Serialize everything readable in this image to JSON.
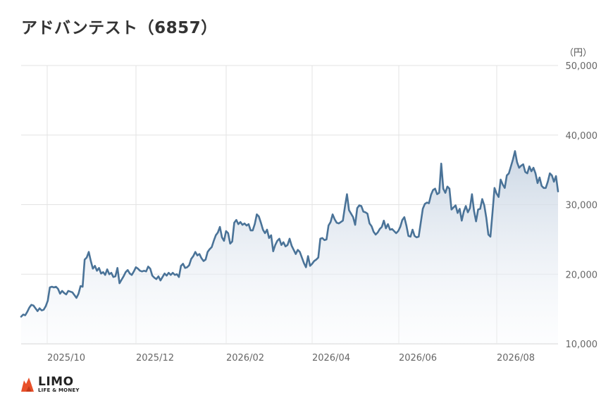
{
  "header": {
    "title": "アドバンテスト（6857）",
    "unit": "（円）"
  },
  "logo": {
    "name": "LIMO",
    "tagline": "LIFE & MONEY"
  },
  "colors": {
    "line": "#4a7398",
    "area_top": "#c9d5e3",
    "grid": "#e3e3e3",
    "logo_accent": "#e8502a"
  },
  "chart_data": {
    "type": "area",
    "title": "アドバンテスト（6857）",
    "ylabel": "（円）",
    "xlabel": "",
    "ylim": [
      10000,
      50000
    ],
    "y_ticks": [
      10000,
      20000,
      30000,
      40000,
      50000
    ],
    "y_tick_labels": [
      "10,000",
      "20,000",
      "30,000",
      "40,000",
      "50,000"
    ],
    "x_tick_labels": [
      "2025/10",
      "2025/12",
      "2026/02",
      "2026/04",
      "2026/06",
      "2026/08"
    ],
    "grid": true,
    "series": [
      {
        "values": [
          13900,
          14200,
          14100,
          14600,
          15200,
          15600,
          15500,
          15100,
          14700,
          15100,
          14800,
          14900,
          15400,
          16200,
          18100,
          18200,
          18100,
          18200,
          17900,
          17200,
          17600,
          17300,
          17100,
          17600,
          17500,
          17400,
          17000,
          16600,
          17200,
          18300,
          18200,
          22100,
          22400,
          23200,
          21900,
          20800,
          21200,
          20500,
          20900,
          20100,
          20300,
          19900,
          20700,
          20000,
          20200,
          19600,
          19700,
          20900,
          18700,
          19200,
          19700,
          20300,
          20600,
          20100,
          19900,
          20400,
          21000,
          20800,
          20500,
          20400,
          20500,
          20400,
          21100,
          20800,
          19800,
          19500,
          19300,
          19700,
          19100,
          19600,
          20100,
          19800,
          20200,
          19900,
          20200,
          19900,
          20000,
          19600,
          21200,
          21500,
          20900,
          21000,
          21300,
          22200,
          22600,
          23200,
          22700,
          22900,
          22300,
          21900,
          22100,
          23200,
          23600,
          23900,
          24800,
          25600,
          26000,
          26800,
          25300,
          24800,
          26200,
          25900,
          24400,
          24700,
          27400,
          27800,
          27200,
          27500,
          27100,
          27300,
          27000,
          27200,
          26300,
          26300,
          27200,
          28600,
          28300,
          27400,
          26400,
          25900,
          26400,
          25200,
          25600,
          23300,
          24200,
          24800,
          25100,
          24200,
          24600,
          24000,
          24200,
          25100,
          24100,
          23500,
          22900,
          23500,
          23200,
          22400,
          21600,
          21000,
          22600,
          21200,
          21500,
          21900,
          22100,
          22400,
          25100,
          25200,
          24900,
          25000,
          27000,
          27500,
          28600,
          27900,
          27400,
          27300,
          27500,
          27700,
          29700,
          31500,
          29200,
          28700,
          28200,
          27100,
          29500,
          29900,
          29800,
          29000,
          28900,
          28700,
          27300,
          26900,
          26100,
          25700,
          26000,
          26500,
          26800,
          27700,
          26600,
          27200,
          26400,
          26500,
          26200,
          25900,
          26200,
          26800,
          27800,
          28200,
          27000,
          25500,
          25400,
          26400,
          25500,
          25300,
          25400,
          27400,
          29400,
          30100,
          30300,
          30200,
          31400,
          32100,
          32300,
          31500,
          31700,
          35900,
          32300,
          31700,
          32600,
          32300,
          29300,
          29600,
          29900,
          28800,
          29400,
          27700,
          29000,
          29800,
          28900,
          29500,
          31500,
          29100,
          27600,
          29300,
          29400,
          30800,
          29900,
          28100,
          25700,
          25400,
          28800,
          32400,
          31600,
          31100,
          33600,
          32900,
          32400,
          34200,
          34500,
          35500,
          36500,
          37700,
          36100,
          35300,
          35600,
          35800,
          34700,
          34500,
          35500,
          34800,
          35300,
          34500,
          33100,
          33900,
          32700,
          32400,
          32400,
          33300,
          34500,
          34200,
          33300,
          34100,
          31900
        ]
      }
    ]
  }
}
